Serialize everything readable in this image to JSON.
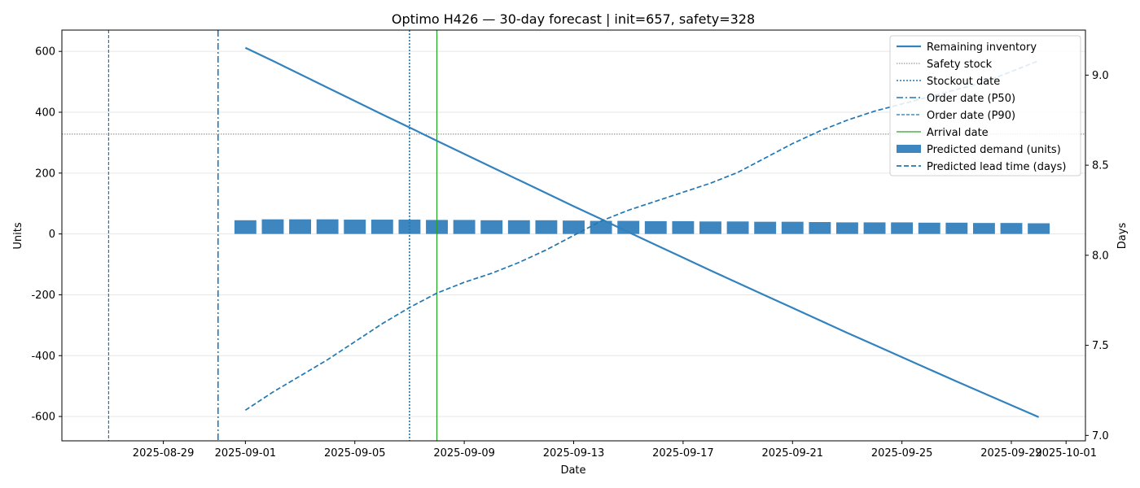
{
  "chart_data": {
    "type": "bar",
    "title": "Optimo H426 — 30-day forecast | init=657, safety=328",
    "xlabel": "Date",
    "ylabel": "Units",
    "ylabel_right": "Days",
    "x_tick_labels": [
      "2025-08-29",
      "2025-09-01",
      "2025-09-05",
      "2025-09-09",
      "2025-09-13",
      "2025-09-17",
      "2025-09-21",
      "2025-09-25",
      "2025-09-29",
      "2025-10-01"
    ],
    "x_tick_dates": [
      "2025-08-29",
      "2025-09-01",
      "2025-09-05",
      "2025-09-09",
      "2025-09-13",
      "2025-09-17",
      "2025-09-21",
      "2025-09-25",
      "2025-09-29",
      "2025-10-01"
    ],
    "xlim": [
      "2025-08-25 07:00",
      "2025-10-01 17:00"
    ],
    "ylim": [
      -680,
      670
    ],
    "y_ticks": [
      -600,
      -400,
      -200,
      0,
      200,
      400,
      600
    ],
    "ylim_right": [
      6.97,
      9.25
    ],
    "y_ticks_right": [
      "7.0",
      "7.5",
      "8.0",
      "8.5",
      "9.0"
    ],
    "grid": "horizontal",
    "legend_position": "top-right",
    "legend": [
      "Remaining inventory",
      "Safety stock",
      "Stockout date",
      "Order date (P50)",
      "Order date (P90)",
      "Arrival date",
      "Predicted demand (units)",
      "Predicted lead time (days)"
    ],
    "dates": [
      "2025-09-01",
      "2025-09-02",
      "2025-09-03",
      "2025-09-04",
      "2025-09-05",
      "2025-09-06",
      "2025-09-07",
      "2025-09-08",
      "2025-09-09",
      "2025-09-10",
      "2025-09-11",
      "2025-09-12",
      "2025-09-13",
      "2025-09-14",
      "2025-09-15",
      "2025-09-16",
      "2025-09-17",
      "2025-09-18",
      "2025-09-19",
      "2025-09-20",
      "2025-09-21",
      "2025-09-22",
      "2025-09-23",
      "2025-09-24",
      "2025-09-25",
      "2025-09-26",
      "2025-09-27",
      "2025-09-28",
      "2025-09-29",
      "2025-09-30"
    ],
    "series": [
      {
        "name": "Remaining inventory",
        "type": "line",
        "axis": "left",
        "values": [
          612,
          569,
          525,
          481,
          437,
          393,
          350,
          306,
          263,
          220,
          177,
          134,
          91,
          49,
          6,
          -36,
          -78,
          -120,
          -161,
          -202,
          -243,
          -284,
          -325,
          -365,
          -405,
          -445,
          -485,
          -524,
          -563,
          -602
        ]
      },
      {
        "name": "Predicted demand (units)",
        "type": "bar",
        "axis": "left",
        "values": [
          45,
          48,
          48,
          48,
          47,
          47,
          47,
          46,
          46,
          45,
          45,
          45,
          44,
          43,
          43,
          42,
          42,
          41,
          41,
          40,
          40,
          39,
          38,
          38,
          38,
          37,
          37,
          36,
          36,
          35
        ]
      },
      {
        "name": "Predicted lead time (days)",
        "type": "line",
        "axis": "right",
        "values": [
          7.14,
          7.24,
          7.33,
          7.42,
          7.52,
          7.62,
          7.71,
          7.79,
          7.85,
          7.9,
          7.96,
          8.03,
          8.11,
          8.19,
          8.25,
          8.3,
          8.35,
          8.4,
          8.46,
          8.54,
          8.62,
          8.69,
          8.75,
          8.8,
          8.84,
          8.88,
          8.92,
          8.96,
          9.02,
          9.08
        ]
      }
    ],
    "safety_stock": 328,
    "markers": {
      "stockout_date": "2025-09-07",
      "order_date_p50": "2025-08-31",
      "order_date_p90": "2025-08-27",
      "arrival_date": "2025-09-08"
    },
    "colors": {
      "blue": "#1f77b4",
      "bar": "#3d86bf",
      "green": "#2ca02c",
      "safety": "#808080",
      "grid": "#e6e6e6"
    }
  }
}
